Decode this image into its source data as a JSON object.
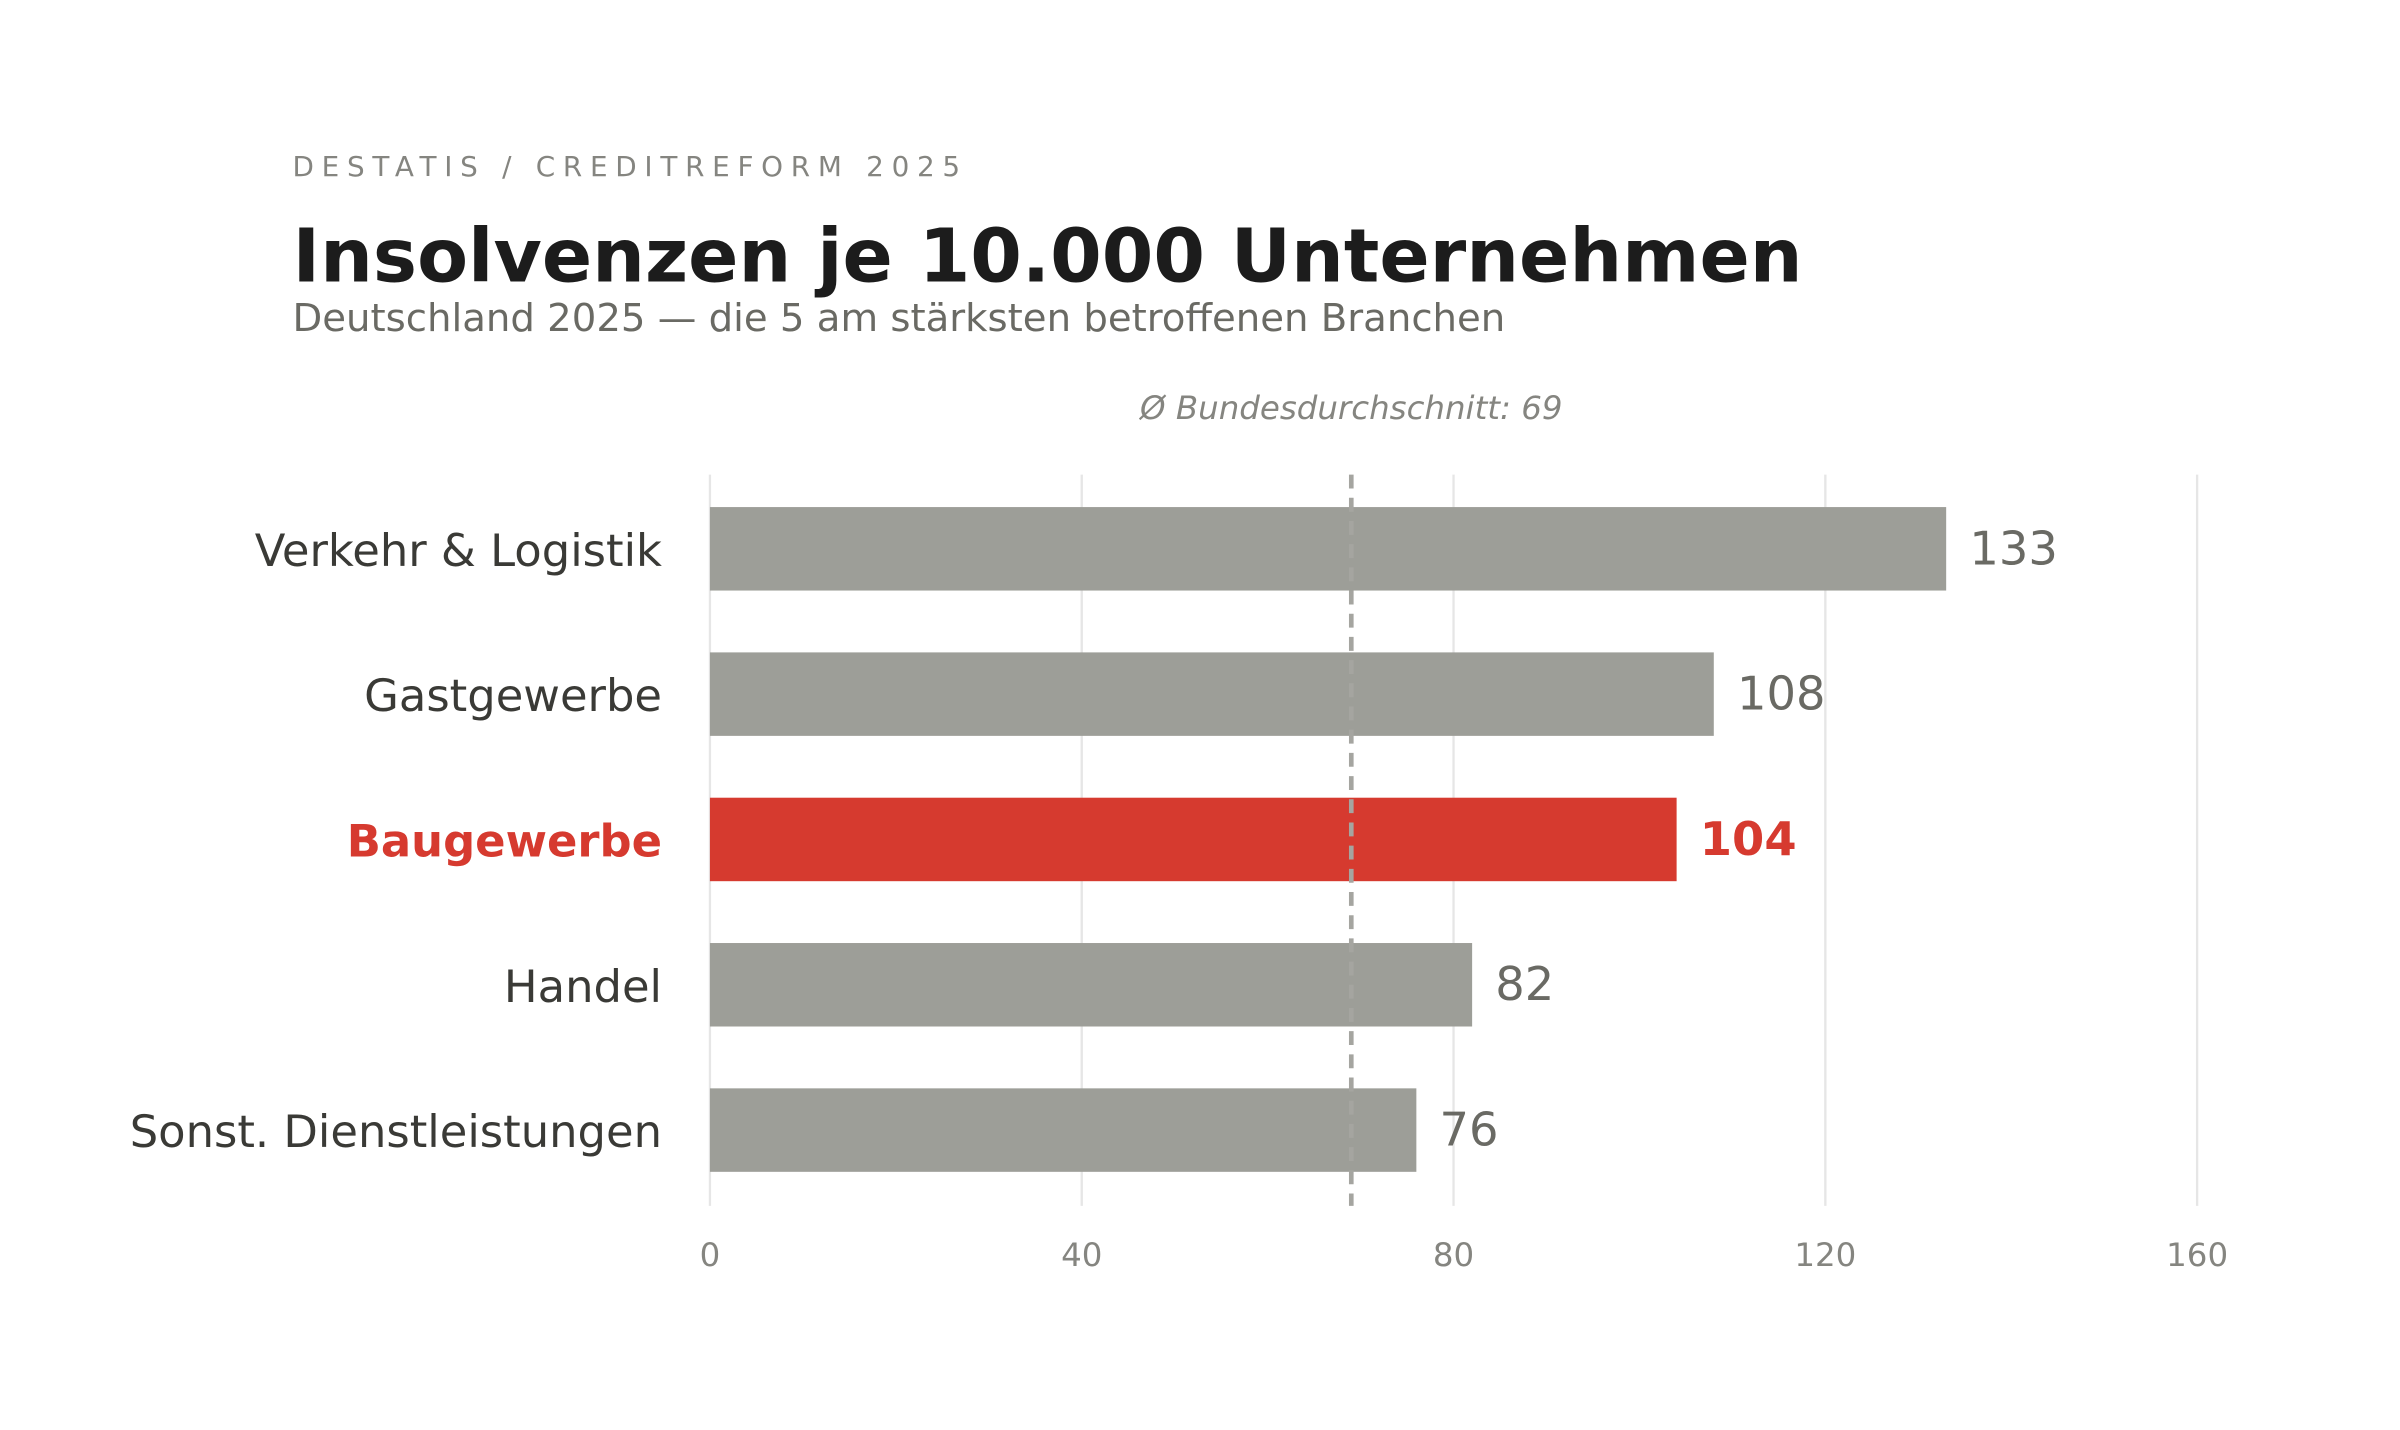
{
  "chart_data": {
    "type": "barh",
    "source": "DESTATIS / CREDITREFORM 2025",
    "title": "Insolvenzen je 10.000 Unternehmen",
    "subtitle": "Deutschland 2025 — die 5 am stärksten betroffenen Branchen",
    "categories": [
      "Verkehr & Logistik",
      "Gastgewerbe",
      "Baugewerbe",
      "Handel",
      "Sonst. Dienstleistungen"
    ],
    "values": [
      133,
      108,
      104,
      82,
      76
    ],
    "colors": [
      "#9d9e98",
      "#9d9e98",
      "#d63a2f",
      "#9d9e98",
      "#9d9e98"
    ],
    "highlight": 2,
    "xlim": [
      0,
      160
    ],
    "xticks": [
      0,
      40,
      80,
      120,
      160
    ],
    "grid": true,
    "reference_line": {
      "value": 69,
      "label": "Ø Bundesdurchschnitt: 69"
    }
  }
}
